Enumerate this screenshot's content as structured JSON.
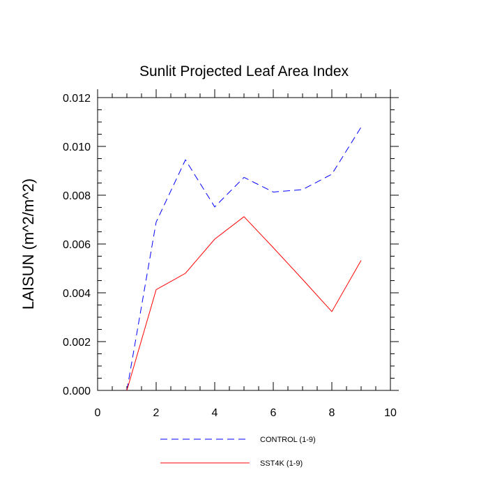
{
  "chart_data": {
    "type": "line",
    "title": "Sunlit Projected Leaf Area Index",
    "xlabel": "",
    "ylabel": "LAISUN  (m^2/m^2)",
    "xlim": [
      0,
      10
    ],
    "ylim": [
      0,
      0.012
    ],
    "x_ticks": [
      0,
      2,
      4,
      6,
      8,
      10
    ],
    "x_tick_labels": [
      "0",
      "2",
      "4",
      "6",
      "8",
      "10"
    ],
    "y_ticks": [
      0,
      0.002,
      0.004,
      0.006,
      0.008,
      0.01,
      0.012
    ],
    "y_tick_labels": [
      "0.000",
      "0.002",
      "0.004",
      "0.006",
      "0.008",
      "0.010",
      "0.012"
    ],
    "x_minor_step": 0.5,
    "y_minor_step": 0.0005,
    "grid": false,
    "legend_position": "bottom-center",
    "x": [
      1,
      2,
      3,
      4,
      5,
      6,
      7,
      8,
      9
    ],
    "series": [
      {
        "name": "CONTROL (1-9)",
        "color": "#0000ff",
        "style": "dashed",
        "values": [
          0.0,
          0.0069,
          0.00945,
          0.00752,
          0.00873,
          0.00813,
          0.00823,
          0.00886,
          0.01079
        ]
      },
      {
        "name": "SST4K (1-9)",
        "color": "#ff0000",
        "style": "solid",
        "values": [
          0.0,
          0.00413,
          0.0048,
          0.0062,
          0.00712,
          0.00585,
          0.00455,
          0.00323,
          0.00533
        ]
      }
    ]
  }
}
